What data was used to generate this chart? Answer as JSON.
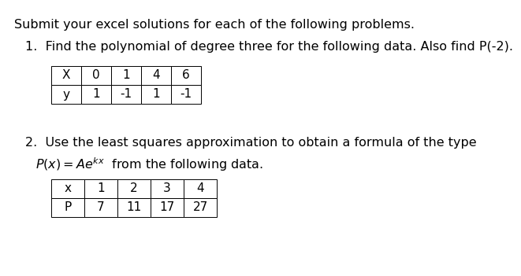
{
  "background_color": "#ffffff",
  "title_text": "Submit your excel solutions for each of the following problems.",
  "problem1_text": "1.  Find the polynomial of degree three for the following data. Also find P(-2).",
  "problem2_line1": "2.  Use the least squares approximation to obtain a formula of the type",
  "problem2_formula": "$P(x) = Ae^{kx}$  from the following data.",
  "table1_headers": [
    "X",
    "0",
    "1",
    "4",
    "6"
  ],
  "table1_row": [
    "y",
    "1",
    "-1",
    "1",
    "-1"
  ],
  "table2_headers": [
    "x",
    "1",
    "2",
    "3",
    "4"
  ],
  "table2_row": [
    "P",
    "7",
    "11",
    "17",
    "27"
  ],
  "font_size_main": 11.5,
  "font_size_table": 11,
  "text_color": "#000000"
}
